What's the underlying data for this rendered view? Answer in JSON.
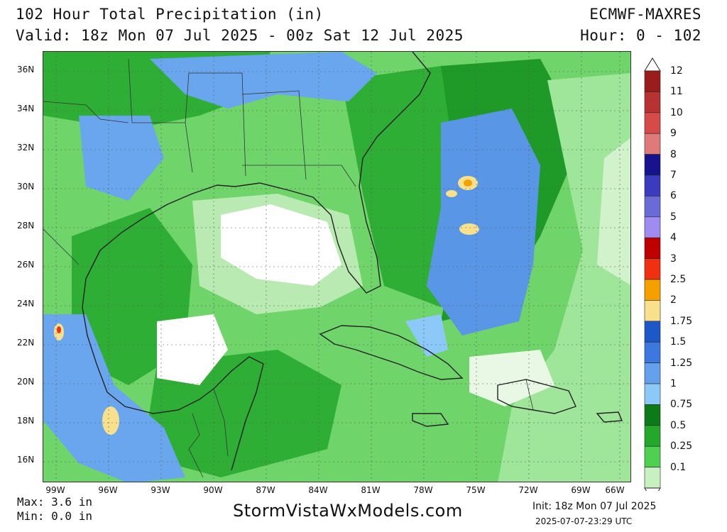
{
  "header": {
    "title": "102 Hour Total Precipitation (in)",
    "valid": "Valid: 18z Mon 07 Jul 2025 - 00z Sat 12 Jul 2025",
    "model": "ECMWF-MAXRES",
    "hours": "Hour: 0 - 102"
  },
  "axes": {
    "lat_labels": [
      "36N",
      "34N",
      "32N",
      "30N",
      "28N",
      "26N",
      "24N",
      "22N",
      "20N",
      "18N",
      "16N"
    ],
    "lon_labels": [
      "99W",
      "96W",
      "93W",
      "90W",
      "87W",
      "84W",
      "81W",
      "78W",
      "75W",
      "72W",
      "69W",
      "66W"
    ]
  },
  "legend": {
    "labels": [
      "12",
      "11",
      "10",
      "9",
      "8",
      "7",
      "6",
      "5",
      "4",
      "3",
      "2.5",
      "2",
      "1.75",
      "1.5",
      "1.25",
      "1",
      "0.75",
      "0.5",
      "0.25",
      "0.1"
    ],
    "colors": [
      "#9a1c1c",
      "#b83232",
      "#d64a4a",
      "#e07a7a",
      "#17138f",
      "#3b3bbf",
      "#6a6ad8",
      "#a08cf0",
      "#c00000",
      "#f03010",
      "#f6a000",
      "#f8e08c",
      "#1c58c8",
      "#3c78e0",
      "#64a0ec",
      "#8cc8f8",
      "#0c7a18",
      "#24a82c",
      "#50d050",
      "#c8f0c0"
    ]
  },
  "footer": {
    "max": "Max: 3.6 in",
    "min": "Min: 0.0 in",
    "brand": "StormVistaWxModels.com",
    "init": "Init: 18z Mon 07 Jul 2025",
    "timestamp": "2025-07-07-23:29 UTC"
  }
}
